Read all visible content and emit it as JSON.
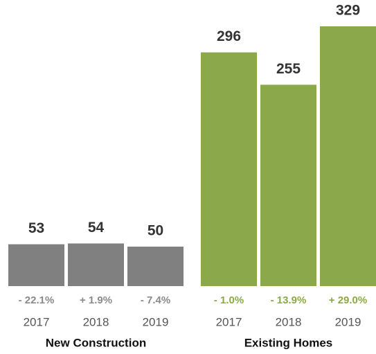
{
  "chart_data": {
    "type": "bar",
    "groups": [
      {
        "name": "New Construction",
        "color": "#808080",
        "label_color": "#8a8a8a",
        "categories": [
          "2017",
          "2018",
          "2019"
        ],
        "values": [
          53,
          54,
          50
        ],
        "changes": [
          "- 22.1%",
          "+ 1.9%",
          "- 7.4%"
        ]
      },
      {
        "name": "Existing Homes",
        "color": "#8ba84a",
        "label_color": "#8aaa46",
        "categories": [
          "2017",
          "2018",
          "2019"
        ],
        "values": [
          296,
          255,
          329
        ],
        "changes": [
          "- 1.0%",
          "- 13.9%",
          "+ 29.0%"
        ]
      }
    ]
  }
}
